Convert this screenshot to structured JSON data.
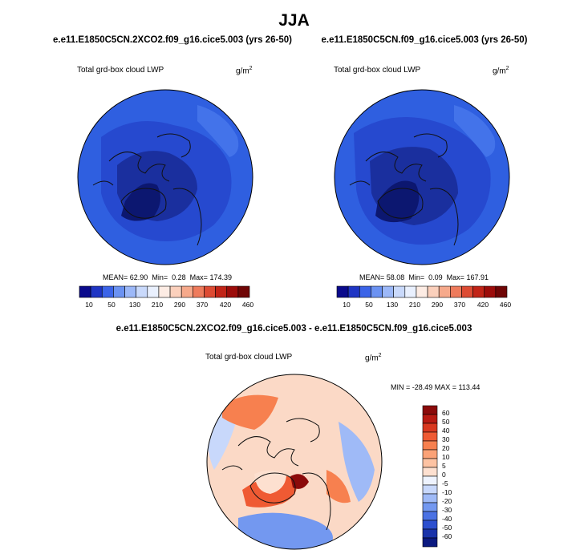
{
  "season_title": "JJA",
  "colors": {
    "ocean_blue": "#2f5fe0",
    "mid_blue": "#2649cf",
    "deep_blue": "#1a2f9e",
    "navy": "#0c1770",
    "diff_bg": "#fbd9c6",
    "land_line": "#111111"
  },
  "chart_data": [
    {
      "type": "heatmap",
      "projection": "polar-stereographic-north",
      "title": "e.e11.E1850C5CN.2XCO2.f09_g16.cice5.003 (yrs 26-50)",
      "variable": "Total grd-box cloud LWP",
      "units": "g/m",
      "units_exp": "2",
      "stats": {
        "mean": "62.90",
        "min": "0.28",
        "max": "174.39"
      },
      "stats_labels": {
        "mean": "MEAN=",
        "min": "Min=",
        "max": "Max="
      },
      "colorbar": {
        "orientation": "horizontal",
        "tick_labels": [
          "10",
          "50",
          "130",
          "210",
          "290",
          "370",
          "420",
          "460"
        ],
        "colors": [
          "#0a0a8c",
          "#1f35c4",
          "#3b64e8",
          "#6b92f2",
          "#9cb8f8",
          "#c9d9fb",
          "#e9f0fe",
          "#fdece4",
          "#fbd0bc",
          "#f6a98b",
          "#ee7b5c",
          "#dd4b33",
          "#c12417",
          "#9c0c0a",
          "#6f0505"
        ]
      }
    },
    {
      "type": "heatmap",
      "projection": "polar-stereographic-north",
      "title": "e.e11.E1850C5CN.f09_g16.cice5.003 (yrs 26-50)",
      "variable": "Total grd-box cloud LWP",
      "units": "g/m",
      "units_exp": "2",
      "stats": {
        "mean": "58.08",
        "min": "0.09",
        "max": "167.91"
      },
      "stats_labels": {
        "mean": "MEAN=",
        "min": "Min=",
        "max": "Max="
      },
      "colorbar": {
        "orientation": "horizontal",
        "tick_labels": [
          "10",
          "50",
          "130",
          "210",
          "290",
          "370",
          "420",
          "460"
        ],
        "colors": [
          "#0a0a8c",
          "#1f35c4",
          "#3b64e8",
          "#6b92f2",
          "#9cb8f8",
          "#c9d9fb",
          "#e9f0fe",
          "#fdece4",
          "#fbd0bc",
          "#f6a98b",
          "#ee7b5c",
          "#dd4b33",
          "#c12417",
          "#9c0c0a",
          "#6f0505"
        ]
      }
    },
    {
      "type": "heatmap",
      "projection": "polar-stereographic-north",
      "title": "e.e11.E1850C5CN.2XCO2.f09_g16.cice5.003 - e.e11.E1850C5CN.f09_g16.cice5.003",
      "variable": "Total grd-box cloud LWP",
      "units": "g/m",
      "units_exp": "2",
      "minmax_text": "MIN = -28.49  MAX = 113.44",
      "colorbar": {
        "orientation": "vertical",
        "tick_labels": [
          "60",
          "50",
          "40",
          "30",
          "20",
          "10",
          "5",
          "0",
          "-5",
          "-10",
          "-20",
          "-30",
          "-40",
          "-50",
          "-60"
        ],
        "colors": [
          "#8b0a0a",
          "#b81a12",
          "#d9381f",
          "#ef5a33",
          "#f7804f",
          "#fba277",
          "#fdc3a3",
          "#fde0d0",
          "#eef3fe",
          "#c8d8fb",
          "#9fbaf7",
          "#7398f0",
          "#4b72e4",
          "#2c4fcf",
          "#1a33aa",
          "#0c1a80"
        ]
      }
    }
  ]
}
